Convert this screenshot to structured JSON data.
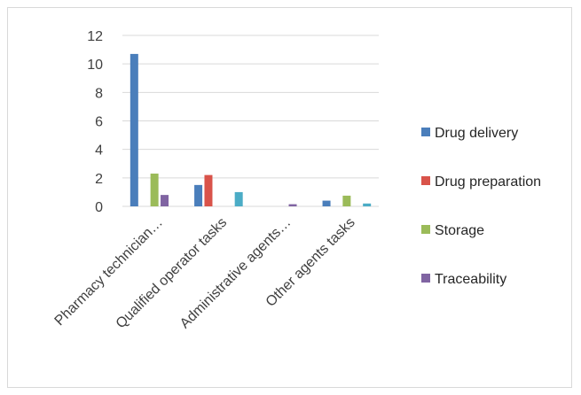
{
  "chart_data": {
    "type": "bar",
    "title": "",
    "xlabel": "",
    "ylabel": "",
    "ylim": [
      0,
      12
    ],
    "yticks": [
      0,
      2,
      4,
      6,
      8,
      10,
      12
    ],
    "grid": true,
    "legend_position": "right",
    "categories": [
      "Pharmacy technician…",
      "Qualified operator tasks",
      "Administrative agents…",
      "Other agents tasks"
    ],
    "series": [
      {
        "name": "Drug delivery",
        "color": "#4a7ebb",
        "values": [
          10.7,
          1.5,
          0,
          0.4
        ]
      },
      {
        "name": "Drug preparation",
        "color": "#d9534a",
        "values": [
          0,
          2.2,
          0,
          0
        ]
      },
      {
        "name": "Storage",
        "color": "#9bbb59",
        "values": [
          2.3,
          0,
          0,
          0.75
        ]
      },
      {
        "name": "Traceability",
        "color": "#8064a2",
        "values": [
          0.8,
          0,
          0.15,
          0
        ]
      },
      {
        "color": "#4bacc6",
        "values": [
          0,
          1.0,
          0,
          0.2
        ]
      }
    ]
  }
}
